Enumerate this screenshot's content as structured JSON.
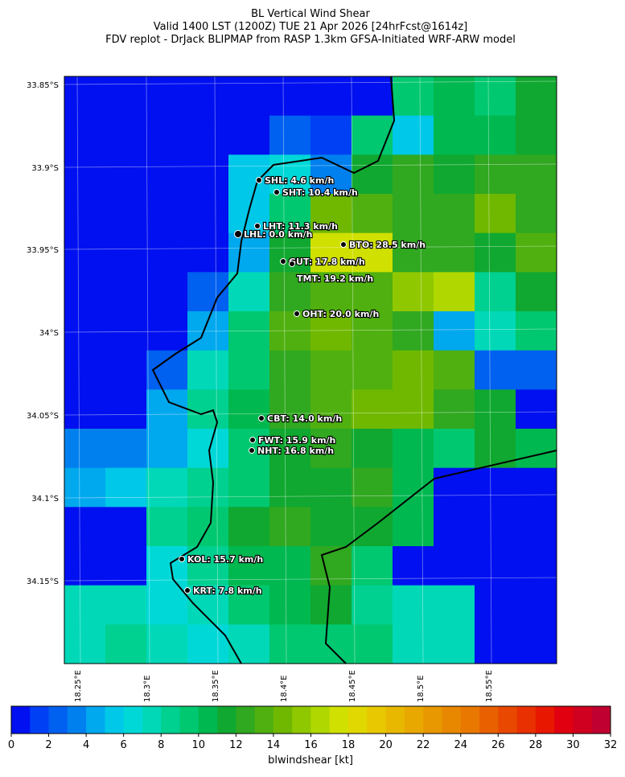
{
  "title_lines": [
    "BL Vertical Wind Shear",
    "Valid 1400 LST (1200Z) TUE 21 Apr 2026 [24hrFcst@1614z]",
    "FDV replot - DrJack BLIPMAP from RASP 1.3km GFSA-Initiated WRF-ARW model"
  ],
  "map": {
    "lat_labels": [
      "33.85°S",
      "33.9°S",
      "33.95°S",
      "34°S",
      "34.05°S",
      "34.1°S",
      "34.15°S"
    ],
    "lon_labels": [
      "18.25°E",
      "18.3°E",
      "18.35°E",
      "18.4°E",
      "18.45°E",
      "18.5°E",
      "18.55°E"
    ],
    "cell_values": [
      [
        0,
        0,
        0,
        0,
        0,
        0,
        0,
        0,
        9,
        10,
        9,
        11
      ],
      [
        0,
        0,
        0,
        0,
        0,
        2,
        1,
        9,
        5,
        10,
        10,
        11
      ],
      [
        0,
        0,
        0,
        0,
        5,
        6,
        3,
        11,
        12,
        11,
        12,
        12
      ],
      [
        0,
        0,
        0,
        0,
        5,
        9,
        14,
        13,
        12,
        12,
        14,
        12
      ],
      [
        0,
        0,
        0,
        0,
        4,
        11,
        17,
        17,
        12,
        12,
        11,
        13
      ],
      [
        0,
        0,
        0,
        2,
        7,
        12,
        13,
        13,
        15,
        16,
        8,
        11
      ],
      [
        0,
        0,
        0,
        4,
        9,
        13,
        14,
        13,
        12,
        4,
        7,
        9
      ],
      [
        0,
        0,
        2,
        7,
        9,
        12,
        13,
        13,
        14,
        13,
        2,
        2
      ],
      [
        0,
        0,
        4,
        8,
        10,
        12,
        13,
        14,
        14,
        12,
        11,
        0
      ],
      [
        3,
        3,
        4,
        6,
        9,
        11,
        12,
        11,
        10,
        9,
        11,
        10
      ],
      [
        4,
        5,
        7,
        8,
        9,
        11,
        11,
        12,
        10,
        0,
        0,
        0
      ],
      [
        0,
        0,
        8,
        9,
        11,
        12,
        11,
        11,
        10,
        0,
        0,
        0
      ],
      [
        0,
        0,
        6,
        8,
        10,
        10,
        12,
        9,
        0,
        0,
        0,
        0
      ],
      [
        7,
        7,
        6,
        7,
        9,
        10,
        11,
        8,
        7,
        7,
        0,
        0
      ],
      [
        7,
        8,
        7,
        6,
        7,
        9,
        9,
        9,
        7,
        7,
        0,
        0
      ]
    ],
    "stations": [
      "SHL: 4.6 km/h",
      "SHT: 10.4 km/h",
      "LHT: 11.3 km/h",
      "LHL: 0.0 km/h",
      "BTO: 28.5 km/h",
      "GUT: 17.8 km/h",
      "TMT: 19.2 km/h",
      "OHT: 20.0 km/h",
      "CBT: 14.0 km/h",
      "FWT: 15.9 km/h",
      "NHT: 16.8 km/h",
      "KOL: 15.7 km/h",
      "KRT: 7.8 km/h"
    ]
  },
  "colorbar": {
    "label": "blwindshear [kt]",
    "ticks": [
      0,
      2,
      4,
      6,
      8,
      10,
      12,
      14,
      16,
      18,
      20,
      22,
      24,
      26,
      28,
      30,
      32
    ],
    "colors": [
      "#0010f0",
      "#0040f5",
      "#0060f0",
      "#0080ee",
      "#00a8ee",
      "#00c8e8",
      "#00d8d8",
      "#00d8b8",
      "#00d090",
      "#00c870",
      "#00b850",
      "#10a830",
      "#30a820",
      "#50b010",
      "#70b800",
      "#90c800",
      "#b0d800",
      "#d0e000",
      "#e0d800",
      "#e8c800",
      "#e8b800",
      "#e8a800",
      "#e89800",
      "#e88800",
      "#e87800",
      "#e86000",
      "#e84800",
      "#e83000",
      "#e81800",
      "#e00010",
      "#d00020",
      "#c00030"
    ]
  }
}
